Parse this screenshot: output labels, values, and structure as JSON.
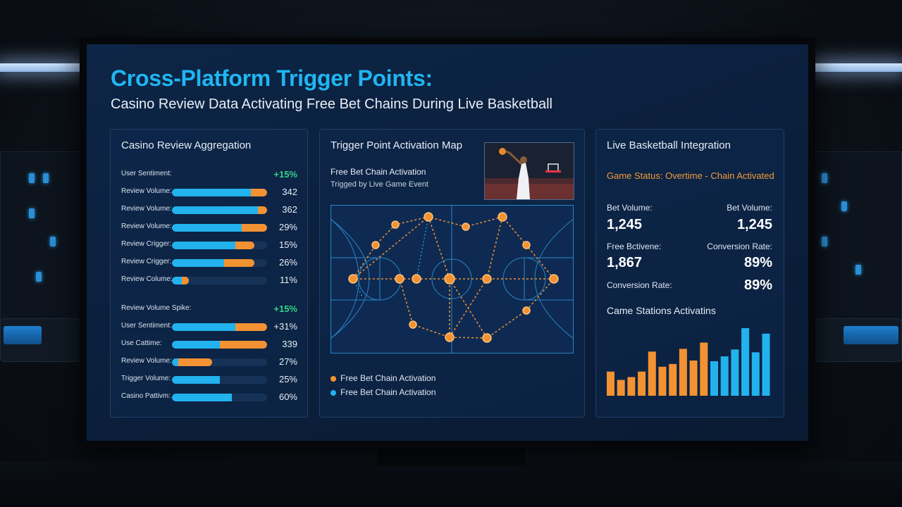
{
  "page": {
    "title": "Cross-Platform Trigger Points:",
    "subtitle": "Casino Review Data Activating Free Bet Chains During Live Basketball"
  },
  "colors": {
    "accent_blue": "#22b2ee",
    "accent_orange": "#f29232",
    "positive_green": "#34d38a"
  },
  "left_panel": {
    "title": "Casino Review Aggregation",
    "header_rows": [
      {
        "label": "User Sentiment:",
        "value": "+15%"
      },
      {
        "label": "Review Volume Spike:",
        "value": "+15%"
      }
    ],
    "group1": [
      {
        "label": "Review Volume:",
        "value": "342",
        "blue": 0.83,
        "orange": 0.17
      },
      {
        "label": "Review Volume:",
        "value": "362",
        "blue": 0.9,
        "orange": 0.1
      },
      {
        "label": "Review Volume:",
        "value": "29%",
        "blue": 0.73,
        "orange": 0.27
      },
      {
        "label": "Review Crigger:",
        "value": "15%",
        "blue": 0.67,
        "orange": 0.2
      },
      {
        "label": "Review Crigger:",
        "value": "26%",
        "blue": 0.55,
        "orange": 0.32
      },
      {
        "label": "Review Colume:",
        "value": "11%",
        "blue": 0.1,
        "orange": 0.08
      }
    ],
    "group2": [
      {
        "label": "User Sentiment:",
        "value": "+31%",
        "blue": 0.67,
        "orange": 0.33
      },
      {
        "label": "Use Cattime:",
        "value": "339",
        "blue": 0.5,
        "orange": 0.5
      },
      {
        "label": "Review Volume:",
        "value": "27%",
        "blue": 0.07,
        "orange": 0.35
      },
      {
        "label": "Trigger Volume:",
        "value": "25%",
        "blue": 0.5,
        "orange": 0
      },
      {
        "label": "Casino Pattivm:",
        "value": "60%",
        "blue": 0.63,
        "orange": 0
      }
    ]
  },
  "middle_panel": {
    "title": "Trigger Point Activation Map",
    "chain_title": "Free Bet Chain Activation",
    "chain_subtitle": "Trigged by Live Game Event",
    "legend": [
      {
        "label": "Free Bet Chain Activation",
        "color": "#f29232"
      },
      {
        "label": "Free Bet Chain Activation",
        "color": "#22b2ee"
      }
    ]
  },
  "right_panel": {
    "title": "Live Basketball Integration",
    "status": "Game Status: Overtime - Chain Activated",
    "metrics": [
      {
        "label": "Bet Volume:",
        "value": "1,245"
      },
      {
        "label": "Bet Volume:",
        "value": "1,245"
      },
      {
        "label": "Free Bctivene:",
        "value": "1,867"
      },
      {
        "label": "Conversion Rate:",
        "value": "89%"
      },
      {
        "label": "Conversion Rate:",
        "value": "89%"
      }
    ],
    "chart_title": "Came Stations Activatins"
  },
  "chart_data": {
    "type": "bar",
    "title": "Came Stations Activatins",
    "values": [
      35,
      23,
      27,
      35,
      64,
      42,
      46,
      68,
      51,
      77,
      50,
      57,
      67,
      98,
      63,
      90
    ],
    "colors": [
      "#f29232",
      "#f29232",
      "#f29232",
      "#f29232",
      "#f29232",
      "#f29232",
      "#f29232",
      "#f29232",
      "#f29232",
      "#f29232",
      "#22b2ee",
      "#22b2ee",
      "#22b2ee",
      "#22b2ee",
      "#22b2ee",
      "#22b2ee"
    ],
    "ylim": [
      0,
      100
    ]
  }
}
